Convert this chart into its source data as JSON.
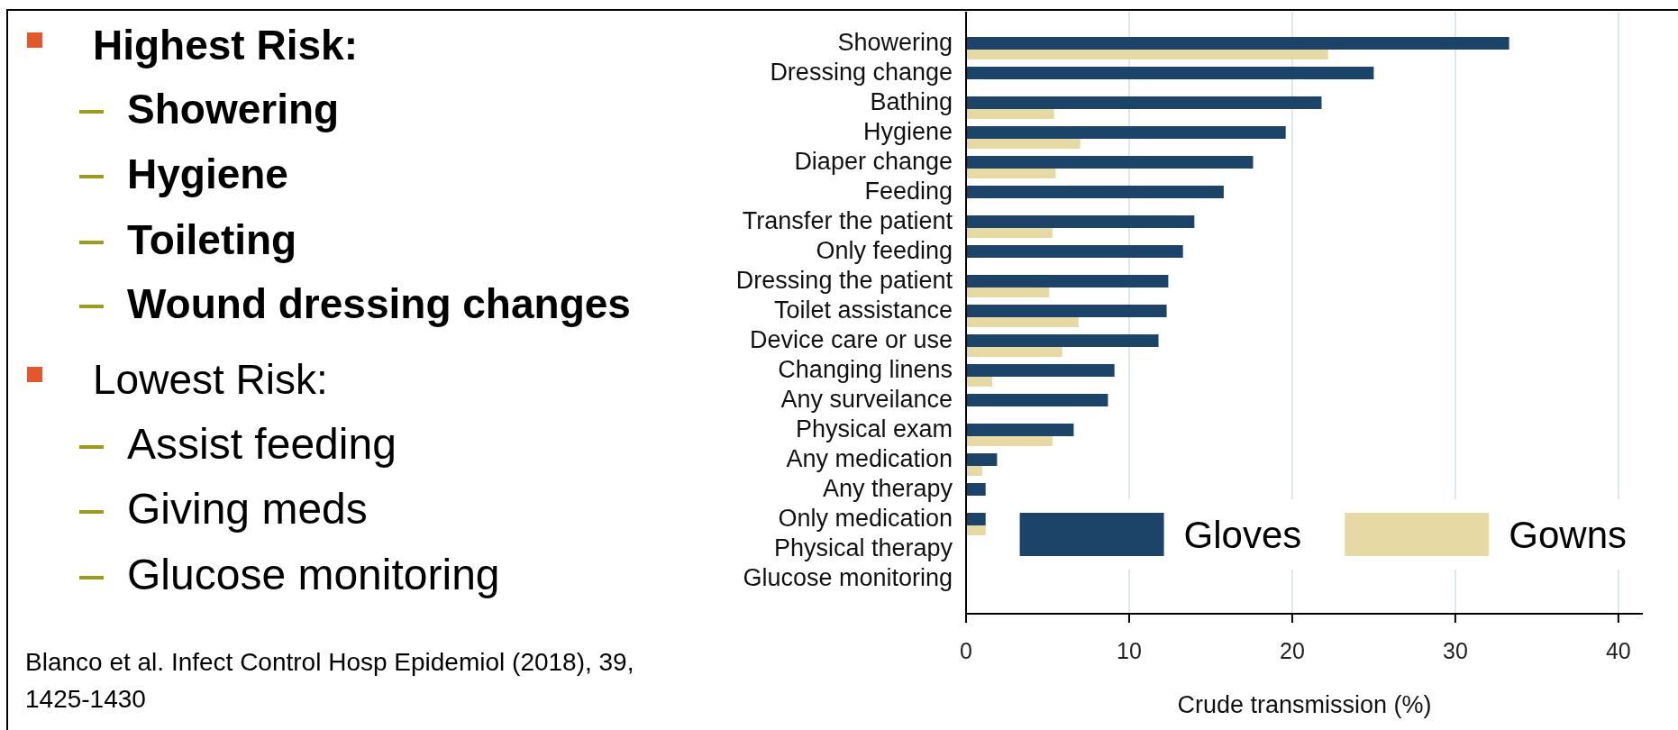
{
  "chart_data": [
    {
      "type": "other",
      "annotations": [
        "Highest Risk:",
        "Showering",
        "Hygiene",
        "Toileting",
        "Wound dressing changes",
        "Lowest Risk:",
        "Assist feeding",
        "Giving meds",
        "Glucose monitoring"
      ]
    },
    {
      "type": "bar",
      "orientation": "horizontal",
      "categories": [
        "Showering",
        "Dressing change",
        "Bathing",
        "Hygiene",
        "Diaper change",
        "Feeding",
        "Transfer the patient",
        "Only feeding",
        "Dressing the patient",
        "Toilet assistance",
        "Device care or use",
        "Changing linens",
        "Any surveilance",
        "Physical exam",
        "Any medication",
        "Any therapy",
        "Only medication",
        "Physical therapy",
        "Glucose monitoring"
      ],
      "series": [
        {
          "name": "Gloves",
          "color": "#1c4469",
          "values": [
            33.3,
            25.0,
            21.8,
            19.6,
            17.6,
            15.8,
            14.0,
            13.3,
            12.4,
            12.3,
            11.8,
            9.1,
            8.7,
            6.6,
            1.9,
            1.2,
            1.2,
            null,
            null
          ]
        },
        {
          "name": "Gowns",
          "color": "#e6d9a3",
          "values": [
            22.2,
            null,
            5.4,
            7.0,
            5.5,
            null,
            5.3,
            null,
            5.1,
            6.9,
            5.9,
            1.6,
            null,
            5.3,
            1.0,
            null,
            1.2,
            null,
            null
          ]
        }
      ],
      "xlabel": "Crude transmission (%)",
      "xlim": [
        0,
        41.5
      ],
      "xticks": [
        0,
        10,
        20,
        30,
        40
      ],
      "grid": "x",
      "legend": "bottom right",
      "annotations": [
        "Blanco et al. Infect Control Hosp Epidemiol (2018), 39, 1425-1430"
      ]
    }
  ]
}
